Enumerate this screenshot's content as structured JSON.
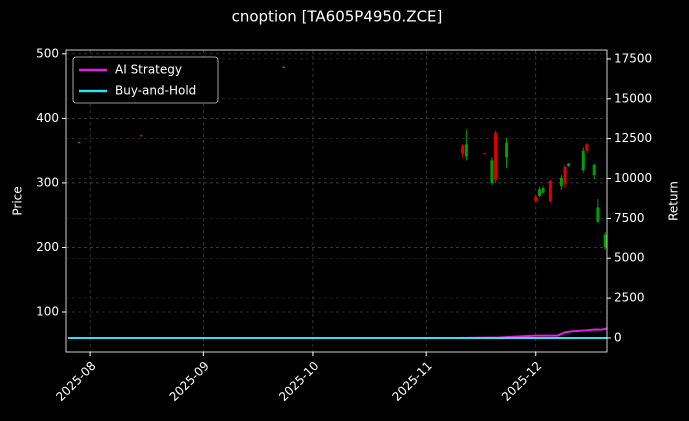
{
  "chart_data": {
    "type": "candlestick",
    "title": "cnoption [TA605P4950.ZCE]",
    "y_label": "Price",
    "y2_label": "Return",
    "xlim": [
      -6.6,
      141.5
    ],
    "xticks": [
      {
        "value": 0,
        "label": "2025-08"
      },
      {
        "value": 31,
        "label": "2025-09"
      },
      {
        "value": 61,
        "label": "2025-10"
      },
      {
        "value": 92,
        "label": "2025-11"
      },
      {
        "value": 122,
        "label": "2025-12"
      }
    ],
    "ylim": [
      38,
      506
    ],
    "yticks": [
      100,
      200,
      300,
      400,
      500
    ],
    "y2lim": [
      -880,
      18060
    ],
    "y2ticks": [
      0,
      2500,
      5000,
      7500,
      10000,
      12500,
      15000,
      17500
    ],
    "grid": true,
    "legend": "upper left",
    "up_color": "#00a000",
    "down_color": "#e00000",
    "candles": {
      "x": [
        -3,
        14,
        53,
        102,
        103,
        108,
        110,
        111,
        114,
        122,
        123,
        124,
        126,
        129,
        130,
        131,
        135,
        136,
        138,
        139,
        141
      ],
      "open": [
        362,
        374,
        479,
        358,
        341,
        346,
        300,
        378,
        340,
        279,
        280,
        285,
        303,
        295,
        325,
        326,
        320,
        360,
        312,
        240,
        200
      ],
      "high": [
        364,
        375,
        481,
        360,
        382,
        347,
        340,
        381,
        370,
        281,
        294,
        295,
        305,
        312,
        328,
        331,
        355,
        362,
        330,
        275,
        224
      ],
      "low": [
        361,
        372,
        478,
        339,
        335,
        344,
        297,
        300,
        323,
        269,
        278,
        283,
        269,
        289,
        292,
        325,
        316,
        345,
        306,
        238,
        196
      ],
      "close": [
        363,
        373,
        480,
        345,
        360,
        345,
        335,
        305,
        362,
        272,
        290,
        292,
        272,
        308,
        298,
        330,
        350,
        350,
        328,
        262,
        220
      ]
    },
    "series": [
      {
        "name": "AI Strategy",
        "color": "#e020e0",
        "axis": "y2",
        "x": [
          -6,
          100,
          112,
          118,
          122,
          128,
          130,
          132,
          136,
          138,
          140,
          141.5
        ],
        "values": [
          0,
          0,
          30,
          100,
          150,
          150,
          350,
          420,
          480,
          530,
          520,
          600
        ]
      },
      {
        "name": "Buy-and-Hold",
        "color": "#30e0f0",
        "axis": "y2",
        "x": [
          -6,
          141.5
        ],
        "values": [
          0,
          0
        ]
      }
    ]
  }
}
